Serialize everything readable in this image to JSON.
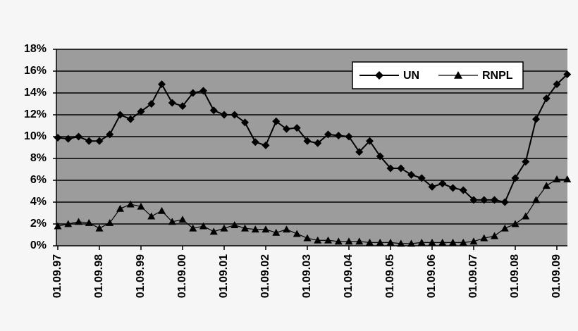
{
  "chart_data": {
    "type": "line",
    "categories": [
      "01.09.97",
      null,
      null,
      null,
      "01.09.98",
      null,
      null,
      null,
      "01.09.99",
      null,
      null,
      null,
      "01.09.00",
      null,
      null,
      null,
      "01.09.01",
      null,
      null,
      null,
      "01.09.02",
      null,
      null,
      null,
      "01.09.03",
      null,
      null,
      null,
      "01.09.04",
      null,
      null,
      null,
      "01.09.05",
      null,
      null,
      null,
      "01.09.06",
      null,
      null,
      null,
      "01.09.07",
      null,
      null,
      null,
      "01.09.08",
      null,
      null,
      null,
      "01.09.09",
      null
    ],
    "series": [
      {
        "name": "UN",
        "color": "#000000",
        "marker": "diamond",
        "values": [
          9.9,
          9.8,
          10.0,
          9.6,
          9.6,
          10.2,
          12.0,
          11.6,
          12.3,
          13.0,
          14.8,
          13.1,
          12.8,
          14.0,
          14.2,
          12.4,
          12.0,
          12.0,
          11.3,
          9.5,
          9.2,
          11.4,
          10.7,
          10.8,
          9.6,
          9.4,
          10.2,
          10.1,
          10.0,
          8.6,
          9.6,
          8.2,
          7.1,
          7.1,
          6.5,
          6.2,
          5.4,
          5.7,
          5.3,
          5.1,
          4.2,
          4.2,
          4.2,
          4.0,
          6.2,
          7.7,
          11.6,
          13.5,
          14.8,
          15.7
        ]
      },
      {
        "name": "RNPL",
        "color": "#000000",
        "marker": "triangle",
        "values": [
          1.8,
          2.0,
          2.2,
          2.1,
          1.6,
          2.1,
          3.4,
          3.8,
          3.6,
          2.7,
          3.2,
          2.2,
          2.4,
          1.6,
          1.8,
          1.3,
          1.6,
          1.9,
          1.6,
          1.5,
          1.5,
          1.2,
          1.5,
          1.1,
          0.7,
          0.5,
          0.5,
          0.4,
          0.4,
          0.4,
          0.3,
          0.3,
          0.3,
          0.2,
          0.2,
          0.3,
          0.3,
          0.3,
          0.3,
          0.3,
          0.4,
          0.7,
          0.9,
          1.6,
          2.0,
          2.7,
          4.2,
          5.5,
          6.1,
          6.1
        ]
      }
    ],
    "ylim": [
      0,
      18
    ],
    "yticks": [
      {
        "value": 0,
        "label": "0%"
      },
      {
        "value": 2,
        "label": "2%"
      },
      {
        "value": 4,
        "label": "4%"
      },
      {
        "value": 6,
        "label": "6%"
      },
      {
        "value": 8,
        "label": "8%"
      },
      {
        "value": 10,
        "label": "10%"
      },
      {
        "value": 12,
        "label": "12%"
      },
      {
        "value": 14,
        "label": "14%"
      },
      {
        "value": 16,
        "label": "16%"
      },
      {
        "value": 18,
        "label": "18%"
      }
    ],
    "grid": true,
    "plot_background": "#9c9c9c",
    "legend": "upper right"
  }
}
